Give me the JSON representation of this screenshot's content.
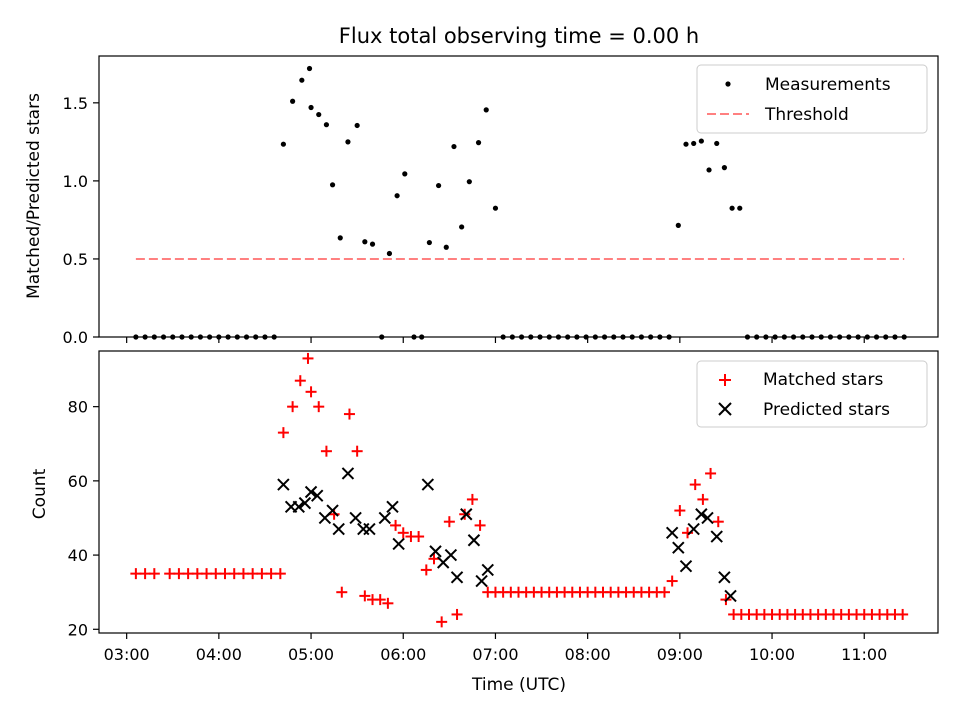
{
  "chart_data": [
    {
      "type": "scatter",
      "title": "Flux total observing time = 0.00 h",
      "xlabel": "",
      "ylabel": "Matched/Predicted stars",
      "xlim": [
        "02:42",
        "11:48"
      ],
      "ylim": [
        0,
        1.8
      ],
      "x_ticks": [
        "03:00",
        "04:00",
        "05:00",
        "06:00",
        "07:00",
        "08:00",
        "09:00",
        "10:00",
        "11:00"
      ],
      "x_tick_labels_visible": false,
      "y_ticks": [
        0.0,
        0.5,
        1.0,
        1.5
      ],
      "y_tick_labels": [
        "0.0",
        "0.5",
        "1.0",
        "1.5"
      ],
      "legend_position": "top-right",
      "series": [
        {
          "name": "Measurements",
          "marker": "dot",
          "color": "#000000",
          "points": [
            [
              "03:06",
              0
            ],
            [
              "03:12",
              0
            ],
            [
              "03:18",
              0
            ],
            [
              "03:24",
              0
            ],
            [
              "03:30",
              0
            ],
            [
              "03:36",
              0
            ],
            [
              "03:42",
              0
            ],
            [
              "03:48",
              0
            ],
            [
              "03:54",
              0
            ],
            [
              "04:00",
              0
            ],
            [
              "04:06",
              0
            ],
            [
              "04:12",
              0
            ],
            [
              "04:18",
              0
            ],
            [
              "04:24",
              0
            ],
            [
              "04:30",
              0
            ],
            [
              "04:36",
              0
            ],
            [
              "04:42",
              1.235
            ],
            [
              "04:48",
              1.51
            ],
            [
              "04:54",
              1.645
            ],
            [
              "04:59",
              1.72
            ],
            [
              "05:00",
              1.47
            ],
            [
              "05:05",
              1.425
            ],
            [
              "05:10",
              1.36
            ],
            [
              "05:14",
              0.975
            ],
            [
              "05:19",
              0.635
            ],
            [
              "05:24",
              1.25
            ],
            [
              "05:30",
              1.355
            ],
            [
              "05:35",
              0.61
            ],
            [
              "05:40",
              0.595
            ],
            [
              "05:46",
              0.0
            ],
            [
              "05:51",
              0.535
            ],
            [
              "05:56",
              0.905
            ],
            [
              "06:01",
              1.045
            ],
            [
              "06:07",
              0.0
            ],
            [
              "06:12",
              0.0
            ],
            [
              "06:17",
              0.605
            ],
            [
              "06:23",
              0.97
            ],
            [
              "06:28",
              0.575
            ],
            [
              "06:33",
              1.22
            ],
            [
              "06:38",
              0.705
            ],
            [
              "06:43",
              0.995
            ],
            [
              "06:49",
              1.245
            ],
            [
              "06:54",
              1.455
            ],
            [
              "07:00",
              0.825
            ],
            [
              "07:05",
              0
            ],
            [
              "07:11",
              0
            ],
            [
              "07:17",
              0
            ],
            [
              "07:23",
              0
            ],
            [
              "07:29",
              0
            ],
            [
              "07:35",
              0
            ],
            [
              "07:41",
              0
            ],
            [
              "07:47",
              0
            ],
            [
              "07:53",
              0
            ],
            [
              "07:59",
              0
            ],
            [
              "08:05",
              0
            ],
            [
              "08:11",
              0
            ],
            [
              "08:17",
              0
            ],
            [
              "08:23",
              0
            ],
            [
              "08:29",
              0
            ],
            [
              "08:35",
              0
            ],
            [
              "08:41",
              0
            ],
            [
              "08:47",
              0
            ],
            [
              "08:53",
              0
            ],
            [
              "08:59",
              0.715
            ],
            [
              "09:04",
              1.235
            ],
            [
              "09:09",
              1.24
            ],
            [
              "09:14",
              1.255
            ],
            [
              "09:19",
              1.07
            ],
            [
              "09:24",
              1.24
            ],
            [
              "09:29",
              1.085
            ],
            [
              "09:34",
              0.825
            ],
            [
              "09:39",
              0.825
            ],
            [
              "09:44",
              0
            ],
            [
              "09:50",
              0
            ],
            [
              "09:56",
              0
            ],
            [
              "10:02",
              0
            ],
            [
              "10:08",
              0
            ],
            [
              "10:14",
              0
            ],
            [
              "10:20",
              0
            ],
            [
              "10:26",
              0
            ],
            [
              "10:32",
              0
            ],
            [
              "10:38",
              0
            ],
            [
              "10:44",
              0
            ],
            [
              "10:50",
              0
            ],
            [
              "10:56",
              0
            ],
            [
              "11:02",
              0
            ],
            [
              "11:08",
              0
            ],
            [
              "11:14",
              0
            ],
            [
              "11:20",
              0
            ],
            [
              "11:26",
              0
            ]
          ]
        },
        {
          "name": "Threshold",
          "style": "dashed",
          "color": "#ff8080",
          "points": [
            [
              "03:06",
              0.5
            ],
            [
              "11:26",
              0.5
            ]
          ]
        }
      ]
    },
    {
      "type": "scatter",
      "title": "",
      "xlabel": "Time (UTC)",
      "ylabel": "Count",
      "xlim": [
        "02:42",
        "11:48"
      ],
      "ylim": [
        19,
        95
      ],
      "x_ticks": [
        "03:00",
        "04:00",
        "05:00",
        "06:00",
        "07:00",
        "08:00",
        "09:00",
        "10:00",
        "11:00"
      ],
      "x_tick_labels": [
        "03:00",
        "04:00",
        "05:00",
        "06:00",
        "07:00",
        "08:00",
        "09:00",
        "10:00",
        "11:00"
      ],
      "y_ticks": [
        20,
        40,
        60,
        80
      ],
      "y_tick_labels": [
        "20",
        "40",
        "60",
        "80"
      ],
      "legend_position": "top-right",
      "series": [
        {
          "name": "Matched stars",
          "marker": "plus",
          "color": "#ff0000",
          "points": [
            [
              "03:06",
              35
            ],
            [
              "03:12",
              35
            ],
            [
              "03:18",
              35
            ],
            [
              "03:28",
              35
            ],
            [
              "03:34",
              35
            ],
            [
              "03:40",
              35
            ],
            [
              "03:46",
              35
            ],
            [
              "03:52",
              35
            ],
            [
              "03:58",
              35
            ],
            [
              "04:04",
              35
            ],
            [
              "04:10",
              35
            ],
            [
              "04:16",
              35
            ],
            [
              "04:22",
              35
            ],
            [
              "04:28",
              35
            ],
            [
              "04:34",
              35
            ],
            [
              "04:40",
              35
            ],
            [
              "04:42",
              73
            ],
            [
              "04:48",
              80
            ],
            [
              "04:53",
              87
            ],
            [
              "04:58",
              93
            ],
            [
              "05:00",
              84
            ],
            [
              "05:05",
              80
            ],
            [
              "05:10",
              68
            ],
            [
              "05:15",
              51
            ],
            [
              "05:20",
              30
            ],
            [
              "05:25",
              78
            ],
            [
              "05:30",
              68
            ],
            [
              "05:35",
              29
            ],
            [
              "05:40",
              28
            ],
            [
              "05:45",
              28
            ],
            [
              "05:50",
              27
            ],
            [
              "05:55",
              48
            ],
            [
              "06:00",
              46
            ],
            [
              "06:05",
              45
            ],
            [
              "06:10",
              45
            ],
            [
              "06:15",
              36
            ],
            [
              "06:20",
              39
            ],
            [
              "06:25",
              22
            ],
            [
              "06:30",
              49
            ],
            [
              "06:35",
              24
            ],
            [
              "06:40",
              51
            ],
            [
              "06:45",
              55
            ],
            [
              "06:50",
              48
            ],
            [
              "06:55",
              30
            ],
            [
              "07:00",
              30
            ],
            [
              "07:05",
              30
            ],
            [
              "07:10",
              30
            ],
            [
              "07:15",
              30
            ],
            [
              "07:20",
              30
            ],
            [
              "07:25",
              30
            ],
            [
              "07:30",
              30
            ],
            [
              "07:35",
              30
            ],
            [
              "07:40",
              30
            ],
            [
              "07:45",
              30
            ],
            [
              "07:50",
              30
            ],
            [
              "07:55",
              30
            ],
            [
              "08:00",
              30
            ],
            [
              "08:05",
              30
            ],
            [
              "08:10",
              30
            ],
            [
              "08:15",
              30
            ],
            [
              "08:20",
              30
            ],
            [
              "08:25",
              30
            ],
            [
              "08:30",
              30
            ],
            [
              "08:35",
              30
            ],
            [
              "08:40",
              30
            ],
            [
              "08:45",
              30
            ],
            [
              "08:50",
              30
            ],
            [
              "08:55",
              33
            ],
            [
              "09:00",
              52
            ],
            [
              "09:05",
              46
            ],
            [
              "09:10",
              59
            ],
            [
              "09:15",
              55
            ],
            [
              "09:20",
              62
            ],
            [
              "09:25",
              49
            ],
            [
              "09:30",
              28
            ],
            [
              "09:35",
              24
            ],
            [
              "09:40",
              24
            ],
            [
              "09:45",
              24
            ],
            [
              "09:50",
              24
            ],
            [
              "09:55",
              24
            ],
            [
              "10:00",
              24
            ],
            [
              "10:05",
              24
            ],
            [
              "10:10",
              24
            ],
            [
              "10:15",
              24
            ],
            [
              "10:20",
              24
            ],
            [
              "10:25",
              24
            ],
            [
              "10:30",
              24
            ],
            [
              "10:35",
              24
            ],
            [
              "10:40",
              24
            ],
            [
              "10:45",
              24
            ],
            [
              "10:50",
              24
            ],
            [
              "10:55",
              24
            ],
            [
              "11:00",
              24
            ],
            [
              "11:05",
              24
            ],
            [
              "11:10",
              24
            ],
            [
              "11:15",
              24
            ],
            [
              "11:20",
              24
            ],
            [
              "11:25",
              24
            ]
          ]
        },
        {
          "name": "Predicted stars",
          "marker": "x",
          "color": "#000000",
          "points": [
            [
              "04:42",
              59
            ],
            [
              "04:47",
              53
            ],
            [
              "04:52",
              53
            ],
            [
              "04:56",
              54
            ],
            [
              "05:00",
              57
            ],
            [
              "05:04",
              56
            ],
            [
              "05:09",
              50
            ],
            [
              "05:14",
              52
            ],
            [
              "05:18",
              47
            ],
            [
              "05:24",
              62
            ],
            [
              "05:29",
              50
            ],
            [
              "05:34",
              47
            ],
            [
              "05:38",
              47
            ],
            [
              "05:48",
              50
            ],
            [
              "05:53",
              53
            ],
            [
              "05:57",
              43
            ],
            [
              "06:16",
              59
            ],
            [
              "06:21",
              41
            ],
            [
              "06:26",
              38
            ],
            [
              "06:31",
              40
            ],
            [
              "06:35",
              34
            ],
            [
              "06:41",
              51
            ],
            [
              "06:46",
              44
            ],
            [
              "06:51",
              33
            ],
            [
              "06:55",
              36
            ],
            [
              "08:55",
              46
            ],
            [
              "08:59",
              42
            ],
            [
              "09:04",
              37
            ],
            [
              "09:09",
              47
            ],
            [
              "09:14",
              51
            ],
            [
              "09:18",
              50
            ],
            [
              "09:24",
              45
            ],
            [
              "09:29",
              34
            ],
            [
              "09:33",
              29
            ]
          ]
        }
      ]
    }
  ]
}
